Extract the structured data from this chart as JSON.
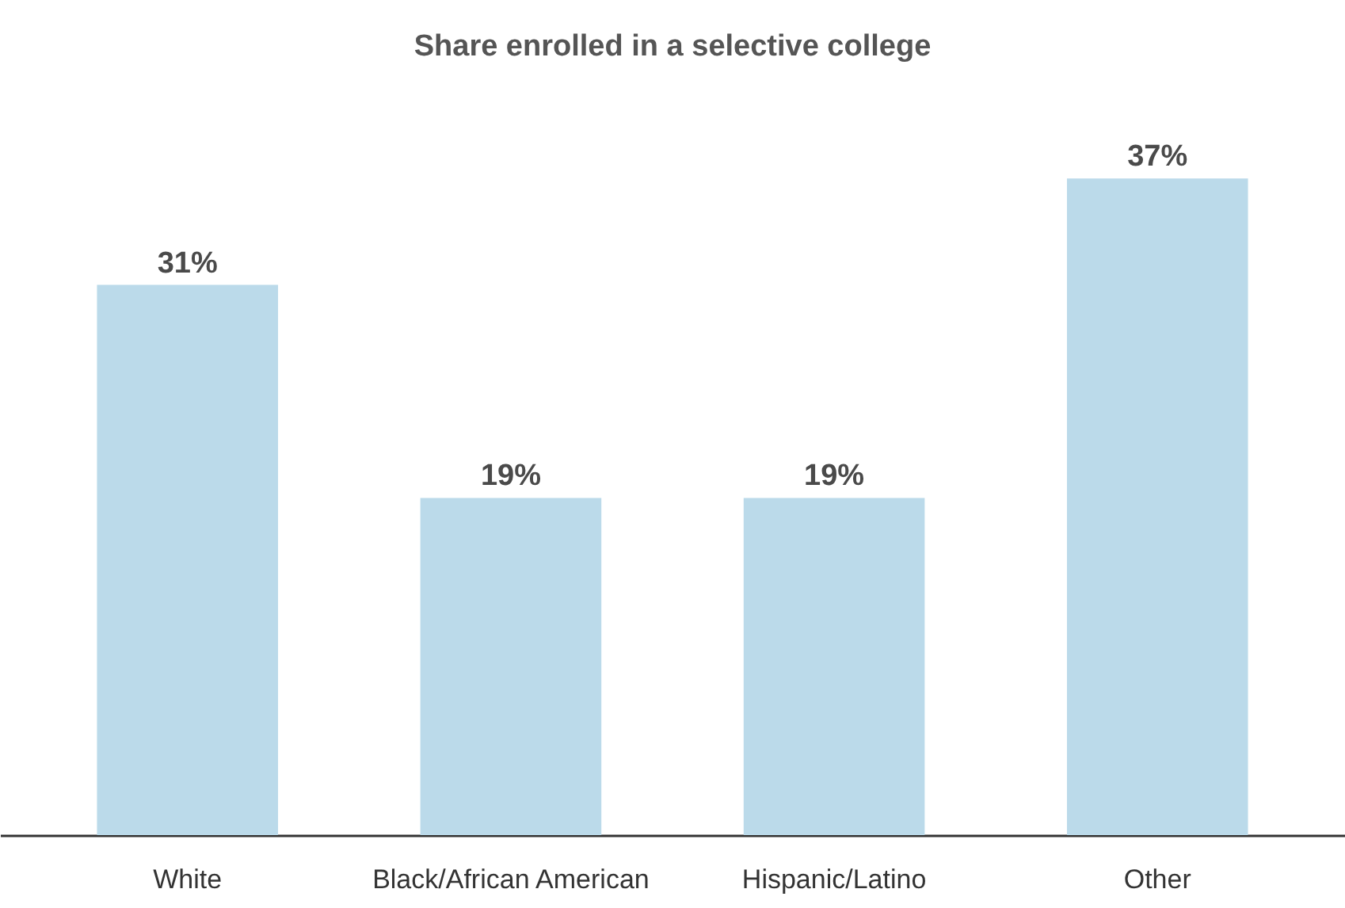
{
  "chart_data": {
    "type": "bar",
    "title": "Share enrolled in a selective college",
    "categories": [
      "White",
      "Black/African American",
      "Hispanic/Latino",
      "Other"
    ],
    "values": [
      31,
      19,
      19,
      37
    ],
    "color": "#bbdaea",
    "value_labels": [
      "31%",
      "19%",
      "19%",
      "37%"
    ],
    "grid": false
  }
}
